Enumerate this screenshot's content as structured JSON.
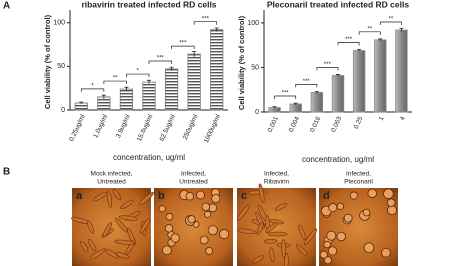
{
  "chart_data": [
    {
      "type": "bar",
      "title": "ribavirin treated infected RD cells",
      "y_label": "Cell viability (% of control)",
      "x_label": "concentration, ug/ml",
      "categories": [
        "0.25ug/ml",
        "1.0ug/ml",
        "3.9ug/ml",
        "15.6ug/ml",
        "62.5ug/ml",
        "250ug/ml",
        "1000ug/ml"
      ],
      "values": [
        8,
        15,
        24,
        32,
        47,
        64,
        92
      ],
      "errors": [
        1,
        2,
        2,
        2,
        2,
        3,
        2
      ],
      "annotations": [
        "*",
        "**",
        "*",
        "***",
        "***",
        "***"
      ],
      "color": "#777777",
      "hatch": true,
      "ylim": [
        0,
        110
      ],
      "yticks": [
        0,
        50,
        100
      ]
    },
    {
      "type": "bar",
      "title": "Pleconaril  treated infected RD cells",
      "y_label": "Cell viability (% of control)",
      "x_label": "concentration, ug/ml",
      "categories": [
        "0.001",
        "0.004",
        "0.016",
        "0.063",
        "0.25",
        "1",
        "4"
      ],
      "values": [
        5,
        9,
        22,
        41,
        69,
        81,
        92
      ],
      "errors": [
        1,
        1,
        1,
        1,
        1,
        1,
        2
      ],
      "annotations": [
        "***",
        "***",
        "***",
        "***",
        "**",
        "**"
      ],
      "color": "#8c8c8c",
      "hatch": false,
      "ylim": [
        0,
        110
      ],
      "yticks": [
        0,
        50,
        100
      ]
    }
  ],
  "figure": {
    "panel_labels": [
      "A",
      "B"
    ],
    "images": [
      {
        "label": "a",
        "caption": [
          "Mock infected,",
          "Untreated"
        ]
      },
      {
        "label": "b",
        "caption": [
          "Infected,",
          "Untreated"
        ]
      },
      {
        "label": "c",
        "caption": [
          "Infected,",
          "Ribavirin"
        ]
      },
      {
        "label": "d",
        "caption": [
          "Infected,",
          "Pleconaril"
        ]
      }
    ]
  }
}
